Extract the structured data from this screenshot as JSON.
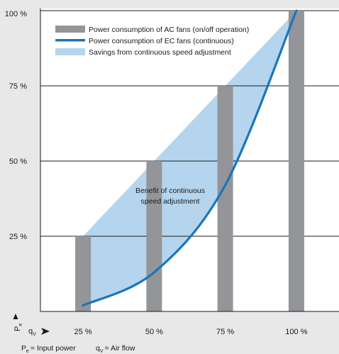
{
  "chart_data": {
    "type": "bar",
    "categories": [
      "25 %",
      "50 %",
      "75 %",
      "100 %"
    ],
    "series": [
      {
        "name": "Power consumption of AC fans (on/off operation)",
        "kind": "bar",
        "values": [
          25,
          50,
          75,
          100
        ],
        "color": "#939598"
      },
      {
        "name": "Power consumption of EC fans (continuous)",
        "kind": "line",
        "x": [
          25,
          50,
          75,
          100
        ],
        "values": [
          2,
          13,
          42,
          100
        ],
        "color": "#1b75bb"
      },
      {
        "name": "Savings from continuous speed adjustment",
        "kind": "area",
        "color": "#b5d5ee"
      }
    ],
    "y_ticks": [
      "25 %",
      "50 %",
      "75 %",
      "100 %"
    ],
    "ylim": [
      0,
      100
    ],
    "annotation": [
      "Benefit of continuous",
      "speed adjustment"
    ],
    "y_axis_symbol": "P",
    "y_axis_subscript": "e",
    "x_axis_symbol": "q",
    "x_axis_subscript": "V",
    "grid": true,
    "legend_position": "top-left",
    "footnote": {
      "p_symbol": "P",
      "p_subscript": "e",
      "p_text": "= Input power",
      "q_symbol": "q",
      "q_subscript": "V",
      "q_text": "= Air flow"
    },
    "colors": {
      "background": "#e8e8e8",
      "plot": "#ffffff",
      "axis": "#1a1a1a"
    }
  }
}
